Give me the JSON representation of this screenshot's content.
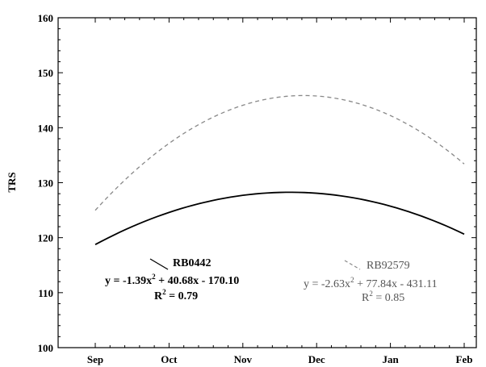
{
  "chart_data": {
    "type": "line",
    "ylabel": "TRS",
    "xlabel": "",
    "categories": [
      "Sep",
      "Oct",
      "Nov",
      "Dec",
      "Jan",
      "Feb"
    ],
    "ylim": [
      100,
      160
    ],
    "yticks": [
      100,
      110,
      120,
      130,
      140,
      150,
      160
    ],
    "grid": false,
    "series": [
      {
        "name": "RB0442",
        "style": "solid",
        "color": "#000000",
        "x": [
          0,
          1,
          2,
          3,
          4,
          5
        ],
        "y": [
          118.6,
          124.8,
          127.8,
          128.0,
          125.5,
          120.8
        ]
      },
      {
        "name": "RB92579",
        "style": "dashed",
        "color": "#888888",
        "x": [
          0,
          1,
          2,
          3,
          4,
          5
        ],
        "y": [
          125.0,
          137.0,
          144.3,
          145.8,
          142.0,
          133.5
        ]
      }
    ],
    "annotations": [
      {
        "series": "RB0442",
        "label": "RB0442",
        "eq_a": "y = -1.39x",
        "eq_exp": "2",
        "eq_b": " + 40.68x - 170.10",
        "r2_a": "R",
        "r2_exp": "2",
        "r2_b": " = 0.79"
      },
      {
        "series": "RB92579",
        "label": "RB92579",
        "eq_a": "y = -2.63x",
        "eq_exp": "2",
        "eq_b": " + 77.84x - 431.11",
        "r2_a": "R",
        "r2_exp": "2",
        "r2_b": " = 0.85"
      }
    ]
  }
}
